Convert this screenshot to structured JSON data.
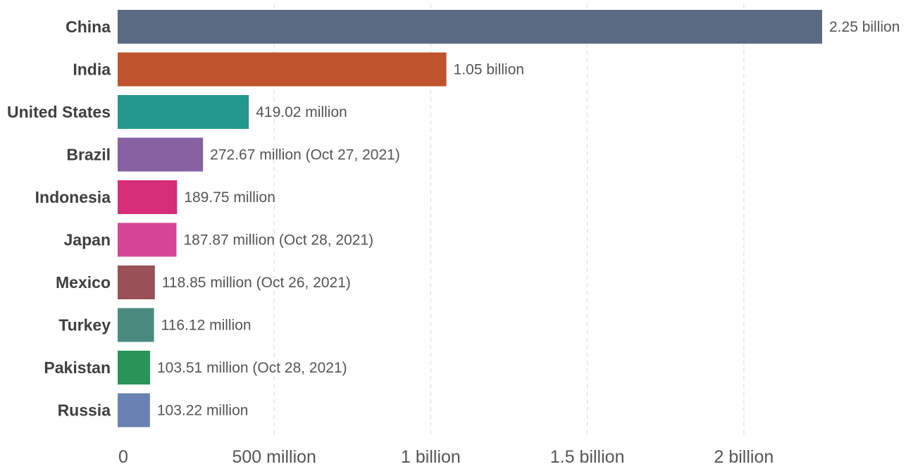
{
  "chart_data": {
    "type": "bar",
    "orientation": "horizontal",
    "title": "",
    "xlabel": "",
    "ylabel": "",
    "xlim": [
      0,
      2250000000
    ],
    "grid": true,
    "categories": [
      "China",
      "India",
      "United States",
      "Brazil",
      "Indonesia",
      "Japan",
      "Mexico",
      "Turkey",
      "Pakistan",
      "Russia"
    ],
    "values": [
      2250000000,
      1050000000,
      419020000,
      272670000,
      189750000,
      187870000,
      118850000,
      116120000,
      103510000,
      103220000
    ],
    "value_labels": [
      "2.25 billion",
      "1.05 billion",
      "419.02 million",
      "272.67 million (Oct 27, 2021)",
      "189.75 million",
      "187.87 million (Oct 28, 2021)",
      "118.85 million (Oct 26, 2021)",
      "116.12 million",
      "103.51 million (Oct 28, 2021)",
      "103.22 million"
    ],
    "colors": [
      "#5a6a82",
      "#be532d",
      "#24978f",
      "#8760a1",
      "#d62e78",
      "#d64497",
      "#9a5057",
      "#4a8b80",
      "#2a9458",
      "#6a82b1"
    ],
    "x_ticks": [
      {
        "value": 0,
        "label": "0"
      },
      {
        "value": 500000000,
        "label": "500 million"
      },
      {
        "value": 1000000000,
        "label": "1 billion"
      },
      {
        "value": 1500000000,
        "label": "1.5 billion"
      },
      {
        "value": 2000000000,
        "label": "2 billion"
      }
    ]
  }
}
